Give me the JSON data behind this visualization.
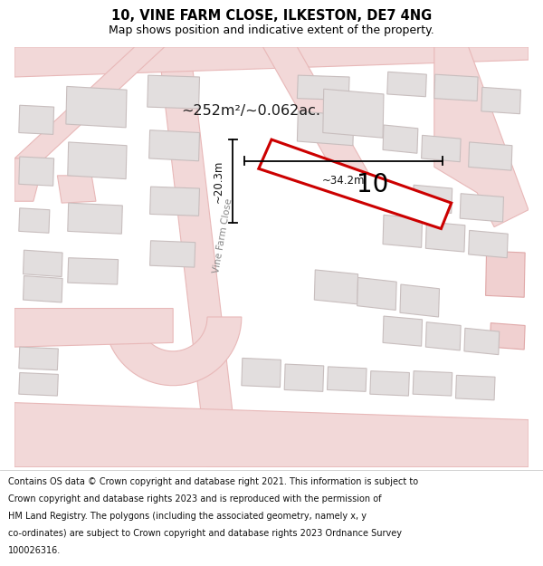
{
  "title": "10, VINE FARM CLOSE, ILKESTON, DE7 4NG",
  "subtitle": "Map shows position and indicative extent of the property.",
  "footer_lines": [
    "Contains OS data © Crown copyright and database right 2021. This information is subject to Crown copyright and database rights 2023 and is reproduced with the permission of",
    "HM Land Registry. The polygons (including the associated geometry, namely x, y co-ordinates) are subject to Crown copyright and database rights 2023 Ordnance Survey",
    "100026316."
  ],
  "map_bg": "#f7f3f3",
  "road_fill": "#f2d8d8",
  "road_edge": "#e8b8b8",
  "building_fill": "#e2dede",
  "building_edge": "#c8bebe",
  "highlight_fill": "#f0d0d0",
  "highlight_edge": "#e0a8a8",
  "plot_color": "#cc0000",
  "plot_number": "10",
  "area_text": "~252m²/~0.062ac.",
  "dim_width": "~34.2m",
  "dim_height": "~20.3m",
  "street_label": "Vine Farm Close"
}
